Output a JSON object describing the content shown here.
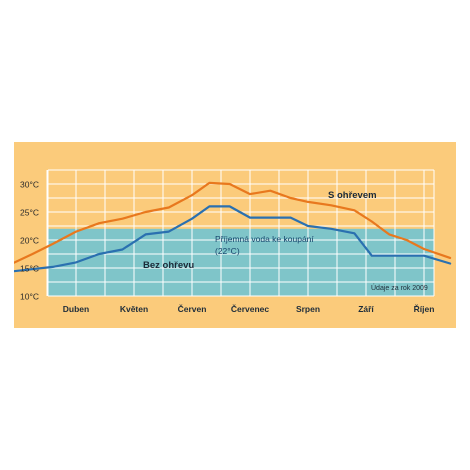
{
  "chart_data": {
    "type": "line",
    "categories": [
      "Duben",
      "Květen",
      "Červen",
      "Červenec",
      "Srpen",
      "Září",
      "Říjen"
    ],
    "y_ticks": [
      "30°C",
      "25°C",
      "20°C",
      "15°C",
      "10°C"
    ],
    "ylim": [
      10,
      32.5
    ],
    "x_range": [
      -1.1,
      6.45
    ],
    "grid": true,
    "series": [
      {
        "name": "S ohřevem",
        "color": "#e8781e",
        "x": [
          -1.1,
          -0.75,
          -0.4,
          0,
          0.4,
          0.8,
          1.2,
          1.6,
          2.0,
          2.3,
          2.65,
          3.0,
          3.35,
          3.7,
          4.0,
          4.4,
          4.8,
          5.1,
          5.4,
          5.7,
          6.0,
          6.45
        ],
        "values": [
          15.8,
          17.5,
          19.3,
          21.5,
          23.0,
          23.8,
          25.0,
          25.8,
          28.0,
          30.2,
          30.0,
          28.2,
          28.8,
          27.5,
          26.8,
          26.2,
          25.3,
          23.3,
          21.0,
          20.0,
          18.4,
          16.8
        ]
      },
      {
        "name": "Bez ohřevu",
        "color": "#2a70b0",
        "x": [
          -1.1,
          -0.4,
          0,
          0.4,
          0.8,
          1.2,
          1.6,
          2.0,
          2.3,
          2.65,
          3.0,
          3.7,
          4.0,
          4.4,
          4.8,
          5.1,
          5.4,
          6.0,
          6.45
        ],
        "values": [
          14.4,
          15.2,
          16.0,
          17.5,
          18.3,
          21.0,
          21.5,
          23.8,
          26.0,
          26.0,
          24.0,
          24.0,
          22.5,
          22.0,
          21.2,
          17.2,
          17.2,
          17.2,
          15.8
        ]
      }
    ],
    "band": {
      "label": "Příjemná voda ke koupání",
      "sublabel": "(22°C)",
      "ymax": 22,
      "color": "#7fc5c9"
    },
    "note": "Údaje za rok 2009"
  }
}
